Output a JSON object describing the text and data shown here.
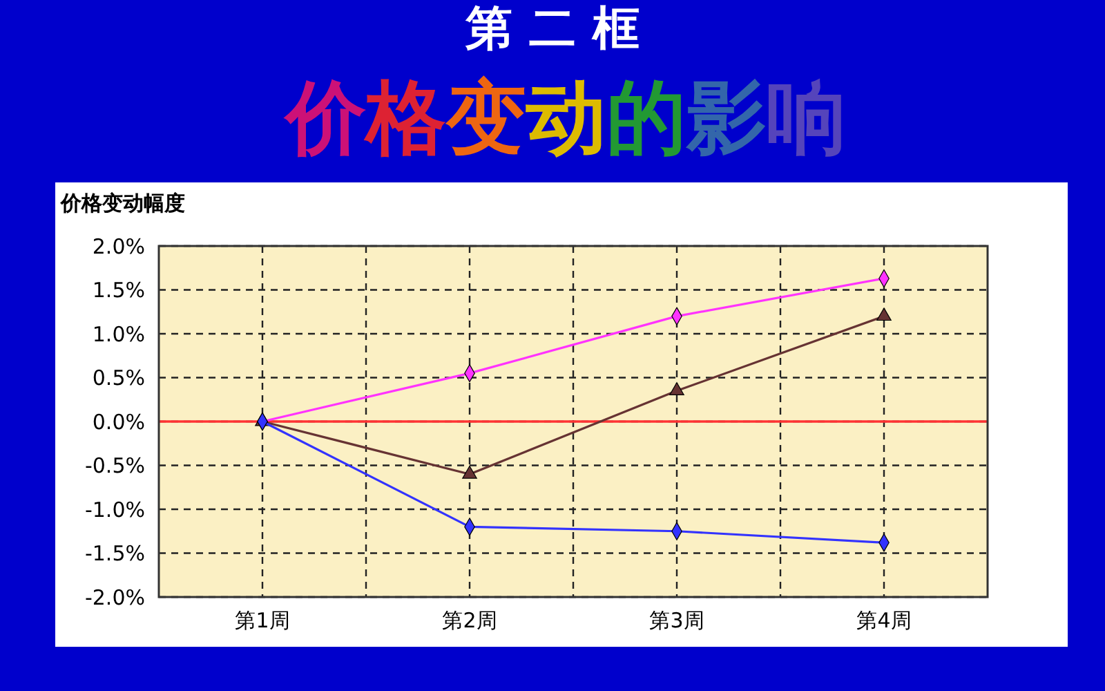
{
  "chart_data": {
    "type": "line",
    "title": "第 二 框",
    "subtitle": "价格变动的影响",
    "ylabel": "价格变动幅度",
    "categories": [
      "第1周",
      "第2周",
      "第3周",
      "第4周"
    ],
    "series": [
      {
        "color": "#ff33ff",
        "marker": "diamond",
        "values": [
          0,
          0.55,
          1.2,
          1.63
        ]
      },
      {
        "color": "#663333",
        "marker": "triangle",
        "values": [
          0,
          -0.6,
          0.35,
          1.2
        ]
      },
      {
        "color": "#3333ff",
        "marker": "diamond",
        "values": [
          0,
          -1.2,
          -1.25,
          -1.38
        ]
      }
    ],
    "ylim": [
      -2,
      2
    ],
    "yticks": [
      {
        "value": -2,
        "label": "-2.0%"
      },
      {
        "value": -1.5,
        "label": "-1.5%"
      },
      {
        "value": -1,
        "label": "-1.0%"
      },
      {
        "value": -0.5,
        "label": "-0.5%"
      },
      {
        "value": 0,
        "label": "0.0%"
      },
      {
        "value": 0.5,
        "label": "0.5%"
      },
      {
        "value": 1,
        "label": "1.0%"
      },
      {
        "value": 1.5,
        "label": "1.5%"
      },
      {
        "value": 2,
        "label": "2.0%"
      }
    ],
    "ref_lines": [
      {
        "axis": "y",
        "value": 0,
        "color": "#ff3333"
      }
    ],
    "grid": true,
    "line_style": "solid"
  }
}
